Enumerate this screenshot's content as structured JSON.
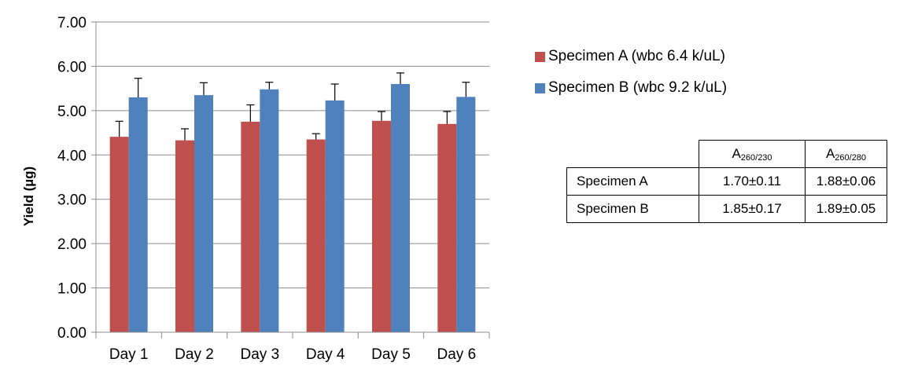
{
  "chart_data": {
    "type": "bar",
    "categories": [
      "Day 1",
      "Day 2",
      "Day 3",
      "Day 4",
      "Day 5",
      "Day 6"
    ],
    "series": [
      {
        "name": "Specimen A (wbc 6.4 k/uL)",
        "color": "#c0504d",
        "values": [
          4.41,
          4.33,
          4.75,
          4.35,
          4.77,
          4.7
        ],
        "errors": [
          0.35,
          0.26,
          0.38,
          0.13,
          0.21,
          0.28
        ]
      },
      {
        "name": "Specimen B (wbc 9.2 k/uL)",
        "color": "#4f81bd",
        "values": [
          5.3,
          5.35,
          5.48,
          5.23,
          5.6,
          5.31
        ],
        "errors": [
          0.43,
          0.28,
          0.16,
          0.37,
          0.25,
          0.33
        ]
      }
    ],
    "ylabel": "Yield (µg)",
    "xlabel": "",
    "ylim": [
      0,
      7
    ],
    "yticks": [
      "0.00",
      "1.00",
      "2.00",
      "3.00",
      "4.00",
      "5.00",
      "6.00",
      "7.00"
    ],
    "legend_position": "right",
    "grid": true
  },
  "table": {
    "headers": [
      {
        "base": "A",
        "sub": "260/230"
      },
      {
        "base": "A",
        "sub": "260/280"
      }
    ],
    "rows": [
      {
        "label": "Specimen A",
        "v1": "1.70±0.11",
        "v2": "1.88±0.06"
      },
      {
        "label": "Specimen B",
        "v1": "1.85±0.17",
        "v2": "1.89±0.05"
      }
    ]
  }
}
